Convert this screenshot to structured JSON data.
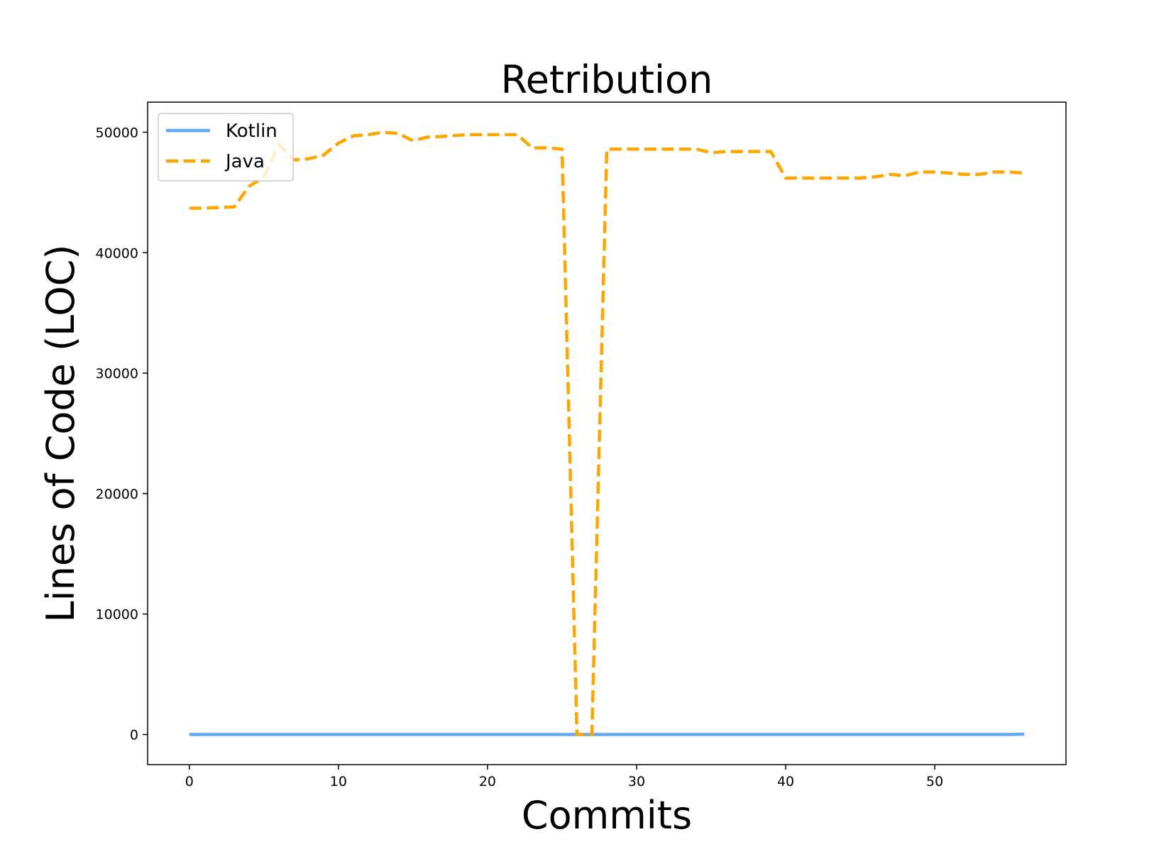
{
  "chart_data": {
    "type": "line",
    "title": "Retribution",
    "xlabel": "Commits",
    "ylabel": "Lines of Code (LOC)",
    "xlim": [
      -2.8,
      58.8
    ],
    "ylim": [
      -2500,
      52500
    ],
    "xticks": [
      0,
      10,
      20,
      30,
      40,
      50
    ],
    "xtick_labels": [
      "0",
      "10",
      "20",
      "30",
      "40",
      "50"
    ],
    "yticks": [
      0,
      10000,
      20000,
      30000,
      40000,
      50000
    ],
    "ytick_labels": [
      "0",
      "10000",
      "20000",
      "30000",
      "40000",
      "50000"
    ],
    "grid": false,
    "legend_position": "upper-left",
    "x": [
      0,
      1,
      2,
      3,
      4,
      5,
      6,
      7,
      8,
      9,
      10,
      11,
      12,
      13,
      14,
      15,
      16,
      17,
      18,
      19,
      20,
      21,
      22,
      23,
      24,
      25,
      26,
      27,
      28,
      29,
      30,
      31,
      32,
      33,
      34,
      35,
      36,
      37,
      38,
      39,
      40,
      41,
      42,
      43,
      44,
      45,
      46,
      47,
      48,
      49,
      50,
      51,
      52,
      53,
      54,
      55,
      56
    ],
    "series": [
      {
        "name": "Kotlin",
        "color": "#63aaf4",
        "style": "solid",
        "values": [
          0,
          0,
          0,
          0,
          0,
          0,
          0,
          0,
          0,
          0,
          0,
          0,
          0,
          0,
          0,
          0,
          0,
          0,
          0,
          0,
          0,
          0,
          0,
          0,
          0,
          0,
          0,
          0,
          0,
          0,
          0,
          0,
          0,
          0,
          0,
          0,
          0,
          0,
          0,
          0,
          0,
          0,
          0,
          0,
          0,
          0,
          0,
          0,
          0,
          0,
          0,
          0,
          0,
          0,
          0,
          0,
          30
        ]
      },
      {
        "name": "Java",
        "color": "#ffa500",
        "style": "dashed",
        "values": [
          43700,
          43700,
          43750,
          43800,
          45500,
          46300,
          49000,
          47700,
          47800,
          48100,
          49100,
          49700,
          49800,
          50000,
          49900,
          49300,
          49600,
          49650,
          49750,
          49800,
          49800,
          49800,
          49800,
          48700,
          48700,
          48600,
          0,
          0,
          48600,
          48600,
          48600,
          48600,
          48600,
          48600,
          48600,
          48300,
          48400,
          48400,
          48400,
          48400,
          46200,
          46200,
          46200,
          46200,
          46200,
          46200,
          46300,
          46500,
          46400,
          46700,
          46700,
          46600,
          46500,
          46500,
          46700,
          46700,
          46600
        ]
      }
    ]
  }
}
